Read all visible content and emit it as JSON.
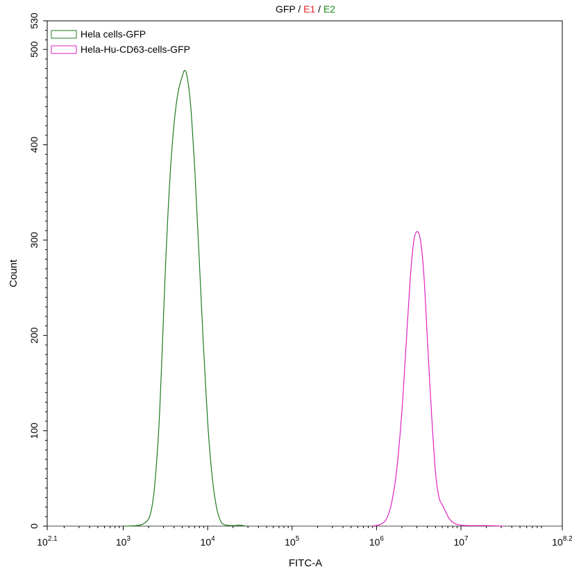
{
  "chart_data": {
    "type": "line",
    "title_parts": [
      {
        "text": "GFP",
        "color": "#000000"
      },
      {
        "text": " / ",
        "color": "#000000"
      },
      {
        "text": "E1",
        "color": "#e0202a"
      },
      {
        "text": " / ",
        "color": "#000000"
      },
      {
        "text": "E2",
        "color": "#1a8a1a"
      }
    ],
    "xlabel": "FITC-A",
    "ylabel": "Count",
    "x_scale": "log10",
    "xlim_exponent": [
      2.1,
      8.2
    ],
    "ylim": [
      0,
      530
    ],
    "x_ticks": [
      {
        "base": "10",
        "exp": "2.1",
        "value": 2.1
      },
      {
        "base": "10",
        "exp": "3",
        "value": 3
      },
      {
        "base": "10",
        "exp": "4",
        "value": 4
      },
      {
        "base": "10",
        "exp": "5",
        "value": 5
      },
      {
        "base": "10",
        "exp": "6",
        "value": 6
      },
      {
        "base": "10",
        "exp": "7",
        "value": 7
      },
      {
        "base": "10",
        "exp": "8.2",
        "value": 8.2
      }
    ],
    "y_ticks": [
      0,
      100,
      200,
      300,
      400,
      500,
      530
    ],
    "grid": false,
    "legend_position": "top-left",
    "series": [
      {
        "name": "Hela cells-GFP",
        "color": "#1e7a1e",
        "points": [
          [
            3.0,
            0
          ],
          [
            3.15,
            0.5
          ],
          [
            3.25,
            3
          ],
          [
            3.32,
            12
          ],
          [
            3.37,
            40
          ],
          [
            3.42,
            100
          ],
          [
            3.46,
            180
          ],
          [
            3.5,
            270
          ],
          [
            3.55,
            360
          ],
          [
            3.6,
            420
          ],
          [
            3.65,
            455
          ],
          [
            3.7,
            472
          ],
          [
            3.73,
            478
          ],
          [
            3.76,
            470
          ],
          [
            3.8,
            440
          ],
          [
            3.85,
            370
          ],
          [
            3.9,
            280
          ],
          [
            3.95,
            190
          ],
          [
            4.0,
            110
          ],
          [
            4.05,
            55
          ],
          [
            4.1,
            22
          ],
          [
            4.15,
            6
          ],
          [
            4.2,
            1.5
          ],
          [
            4.3,
            0.5
          ],
          [
            4.38,
            1
          ],
          [
            4.45,
            0
          ]
        ]
      },
      {
        "name": "Hela-Hu-CD63-cells-GFP",
        "color": "#e020c0",
        "points": [
          [
            5.95,
            0
          ],
          [
            6.05,
            2
          ],
          [
            6.12,
            8
          ],
          [
            6.18,
            25
          ],
          [
            6.24,
            60
          ],
          [
            6.3,
            120
          ],
          [
            6.35,
            190
          ],
          [
            6.4,
            260
          ],
          [
            6.44,
            298
          ],
          [
            6.48,
            309
          ],
          [
            6.52,
            300
          ],
          [
            6.56,
            265
          ],
          [
            6.6,
            200
          ],
          [
            6.65,
            120
          ],
          [
            6.7,
            55
          ],
          [
            6.74,
            30
          ],
          [
            6.78,
            22
          ],
          [
            6.82,
            15
          ],
          [
            6.86,
            8
          ],
          [
            6.92,
            3
          ],
          [
            7.0,
            1
          ],
          [
            7.1,
            0.5
          ],
          [
            7.3,
            0.5
          ],
          [
            7.5,
            0
          ]
        ]
      }
    ]
  }
}
